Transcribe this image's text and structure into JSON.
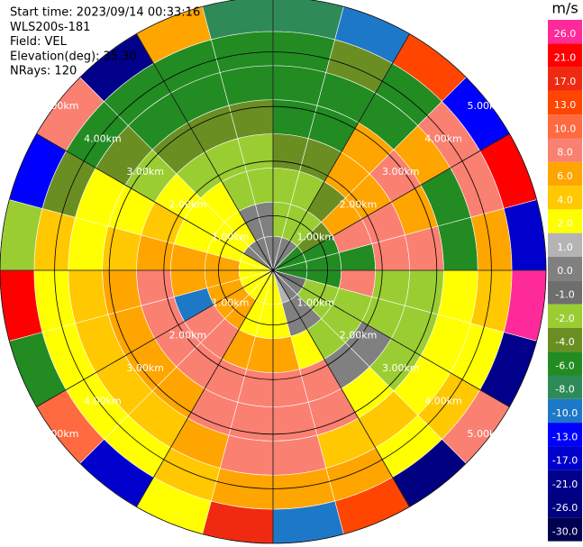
{
  "chart_data": {
    "type": "ppi",
    "header": [
      "Start time: 2023/09/14 00:33:16",
      "WLS200s-181",
      "Field: VEL",
      "Elevation(deg): 35.30",
      "NRays: 120"
    ],
    "rings": [
      {
        "value": 1,
        "label": "1.00km"
      },
      {
        "value": 2,
        "label": "2.00km"
      },
      {
        "value": 3,
        "label": "3.00km"
      },
      {
        "value": 4,
        "label": "4.00km"
      },
      {
        "value": 5,
        "label": "5.00km"
      }
    ],
    "colorbar": {
      "title": "m/s",
      "ticks": [
        {
          "value": 26,
          "label": "26.0"
        },
        {
          "value": 21,
          "label": "21.0"
        },
        {
          "value": 17,
          "label": "17.0"
        },
        {
          "value": 13,
          "label": "13.0"
        },
        {
          "value": 10,
          "label": "10.0"
        },
        {
          "value": 8,
          "label": "8.0"
        },
        {
          "value": 6,
          "label": "6.0"
        },
        {
          "value": 4,
          "label": "4.0"
        },
        {
          "value": 2,
          "label": "2.0"
        },
        {
          "value": 1,
          "label": "1.0"
        },
        {
          "value": 0,
          "label": "0.0"
        },
        {
          "value": -1,
          "label": "-1.0"
        },
        {
          "value": -2,
          "label": "-2.0"
        },
        {
          "value": -4,
          "label": "-4.0"
        },
        {
          "value": -6,
          "label": "-6.0"
        },
        {
          "value": -8,
          "label": "-8.0"
        },
        {
          "value": -10,
          "label": "-10.0"
        },
        {
          "value": -13,
          "label": "-13.0"
        },
        {
          "value": -17,
          "label": "-17.0"
        },
        {
          "value": -21,
          "label": "-21.0"
        },
        {
          "value": -26,
          "label": "-26.0"
        },
        {
          "value": -30,
          "label": "-30.0"
        }
      ],
      "colors": [
        "#ff2a9a",
        "#ff0000",
        "#f02a10",
        "#ff4500",
        "#ff6a40",
        "#fa8072",
        "#ffa500",
        "#ffc800",
        "#ffff00",
        "#b4b4b4",
        "#808080",
        "#6e6e6e",
        "#9acd32",
        "#6b8e23",
        "#228b22",
        "#2e8b57",
        "#1e78c8",
        "#0000ff",
        "#0000cd",
        "#00008b",
        "#000080",
        "#000050"
      ]
    },
    "values": [
      [
        0,
        -2,
        -2,
        -4,
        -6,
        -6,
        -6,
        -8
      ],
      [
        0,
        -2,
        -2,
        -4,
        -6,
        -6,
        -4,
        -10
      ],
      [
        0,
        -2,
        -4,
        6,
        6,
        -6,
        -6,
        13
      ],
      [
        -6,
        -4,
        6,
        6,
        8,
        6,
        8,
        -13
      ],
      [
        -6,
        -6,
        8,
        8,
        6,
        -6,
        8,
        21
      ],
      [
        -6,
        -6,
        -6,
        8,
        8,
        -6,
        6,
        -17
      ],
      [
        -6,
        -6,
        8,
        -2,
        -2,
        2,
        4,
        26
      ],
      [
        -1,
        -2,
        -2,
        -2,
        -2,
        2,
        2,
        -21
      ],
      [
        0,
        -2,
        -2,
        0,
        -2,
        2,
        4,
        8
      ],
      [
        0,
        0,
        -2,
        0,
        2,
        4,
        2,
        -26
      ],
      [
        1,
        0,
        2,
        8,
        8,
        4,
        6,
        13
      ],
      [
        2,
        2,
        6,
        8,
        8,
        8,
        6,
        -10
      ],
      [
        2,
        2,
        6,
        8,
        8,
        8,
        6,
        17
      ],
      [
        2,
        2,
        6,
        8,
        8,
        6,
        4,
        2
      ],
      [
        2,
        6,
        8,
        8,
        6,
        4,
        2,
        -17
      ],
      [
        2,
        6,
        8,
        8,
        6,
        4,
        2,
        10
      ],
      [
        2,
        6,
        -10,
        8,
        6,
        4,
        2,
        -6
      ],
      [
        2,
        6,
        6,
        8,
        6,
        4,
        2,
        21
      ],
      [
        2,
        6,
        6,
        6,
        4,
        2,
        4,
        -2
      ],
      [
        2,
        2,
        2,
        4,
        2,
        2,
        -4,
        -13
      ],
      [
        0,
        2,
        2,
        2,
        -2,
        -4,
        -6,
        8
      ],
      [
        0,
        2,
        2,
        -2,
        -4,
        -6,
        -6,
        -21
      ],
      [
        0,
        0,
        -2,
        -2,
        -4,
        -6,
        -6,
        6
      ],
      [
        0,
        0,
        -2,
        -2,
        -4,
        -6,
        -6,
        -8
      ]
    ]
  }
}
